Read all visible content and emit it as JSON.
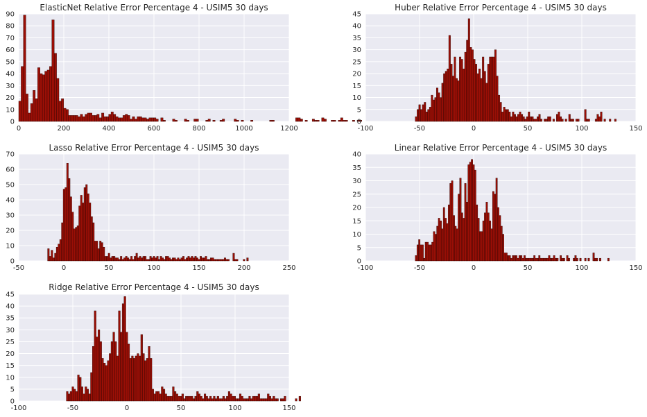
{
  "colors": {
    "bar_fill": "#9a0f06",
    "bar_edge": "#2a0300",
    "plot_bg": "#eaeaf2",
    "grid": "#ffffff"
  },
  "chart_data": [
    {
      "type": "bar",
      "title": "ElasticNet Relative Error Percentage 4 - USIM5 30 days",
      "xlim": [
        0,
        1200
      ],
      "ylim": [
        0,
        90
      ],
      "xticks": [
        0,
        200,
        400,
        600,
        800,
        1000,
        1200
      ],
      "yticks": [
        0,
        10,
        20,
        30,
        40,
        50,
        60,
        70,
        80,
        90
      ],
      "grid": true,
      "bin_start": 0,
      "bin_width": 10.5,
      "values": [
        17,
        46,
        89,
        23,
        7,
        15,
        26,
        19,
        45,
        40,
        39,
        42,
        43,
        46,
        85,
        57,
        36,
        17,
        19,
        11,
        10,
        5,
        5,
        5,
        5,
        4,
        6,
        4,
        6,
        7,
        7,
        5,
        5,
        6,
        3,
        7,
        4,
        4,
        6,
        8,
        6,
        4,
        3,
        3,
        5,
        6,
        5,
        2,
        4,
        2,
        4,
        4,
        3,
        3,
        2,
        3,
        3,
        3,
        2,
        0,
        3,
        1,
        0,
        0,
        0,
        2,
        1,
        0,
        0,
        0,
        2,
        1,
        0,
        0,
        2,
        2,
        0,
        0,
        0,
        1,
        2,
        0,
        1,
        0,
        0,
        1,
        2,
        0,
        0,
        0,
        0,
        2,
        1,
        0,
        1,
        0,
        0,
        0,
        1,
        0,
        0,
        0,
        0,
        0,
        0,
        0,
        1,
        1,
        0,
        0,
        0,
        0,
        0,
        0,
        0,
        0,
        0,
        3,
        3,
        2,
        0,
        1,
        0,
        0,
        2,
        1,
        1,
        0,
        3,
        2,
        0,
        0,
        1,
        1,
        0,
        1,
        3,
        1,
        1,
        0,
        0,
        1,
        0,
        1,
        1,
        0,
        0,
        0,
        0,
        2,
        0,
        0,
        0,
        0,
        0,
        0,
        0,
        0,
        0,
        5
      ]
    },
    {
      "type": "bar",
      "title": "Huber Relative Error Percentage 4 - USIM5 30 days",
      "xlim": [
        -100,
        150
      ],
      "ylim": [
        0,
        45
      ],
      "xticks": [
        -100,
        -50,
        0,
        50,
        100,
        150
      ],
      "yticks": [
        0,
        5,
        10,
        15,
        20,
        25,
        30,
        35,
        40,
        45
      ],
      "grid": true,
      "bin_start": -54,
      "bin_width": 1.63,
      "values": [
        2,
        5,
        7,
        5,
        7,
        8,
        4,
        5,
        6,
        11,
        9,
        10,
        14,
        12,
        10,
        16,
        20,
        21,
        22,
        36,
        24,
        19,
        27,
        18,
        17,
        27,
        26,
        22,
        29,
        34,
        43,
        31,
        30,
        26,
        24,
        20,
        22,
        18,
        27,
        21,
        16,
        24,
        27,
        27,
        27,
        30,
        19,
        11,
        8,
        4,
        6,
        5,
        5,
        4,
        2,
        4,
        3,
        2,
        3,
        4,
        3,
        2,
        1,
        2,
        4,
        2,
        2,
        1,
        1,
        2,
        3,
        1,
        0,
        1,
        1,
        2,
        2,
        0,
        1,
        0,
        3,
        4,
        2,
        1,
        0,
        1,
        0,
        3,
        1,
        1,
        0,
        1,
        1,
        0,
        0,
        0,
        5,
        1,
        1,
        0,
        0,
        0,
        1,
        3,
        2,
        4,
        0,
        1,
        0,
        0,
        1,
        0,
        0,
        1,
        0,
        0
      ]
    },
    {
      "type": "bar",
      "title": "Lasso Relative Error Percentage 4 - USIM5 30 days",
      "xlim": [
        -50,
        250
      ],
      "ylim": [
        0,
        70
      ],
      "xticks": [
        -50,
        0,
        50,
        100,
        150,
        200,
        250
      ],
      "yticks": [
        0,
        10,
        20,
        30,
        40,
        50,
        60,
        70
      ],
      "grid": true,
      "bin_start": -18,
      "bin_width": 1.92,
      "values": [
        8,
        3,
        7,
        2,
        5,
        9,
        11,
        14,
        25,
        47,
        48,
        64,
        54,
        42,
        32,
        21,
        22,
        23,
        36,
        43,
        38,
        48,
        50,
        44,
        38,
        29,
        25,
        13,
        13,
        8,
        13,
        12,
        9,
        3,
        3,
        5,
        2,
        3,
        3,
        2,
        2,
        1,
        3,
        1,
        2,
        3,
        2,
        1,
        3,
        1,
        3,
        5,
        2,
        3,
        2,
        3,
        3,
        1,
        1,
        3,
        2,
        3,
        2,
        3,
        1,
        3,
        2,
        1,
        3,
        3,
        2,
        1,
        2,
        2,
        1,
        2,
        1,
        2,
        3,
        1,
        2,
        3,
        2,
        3,
        2,
        3,
        2,
        1,
        3,
        2,
        2,
        3,
        1,
        1,
        2,
        2,
        1,
        1,
        1,
        1,
        1,
        1,
        2,
        1,
        1,
        0,
        0,
        5,
        1,
        1,
        0,
        0,
        0,
        1,
        0,
        2
      ]
    },
    {
      "type": "bar",
      "title": "Linear Relative Error Percentage 4 - USIM5 30 days",
      "xlim": [
        -100,
        150
      ],
      "ylim": [
        0,
        40
      ],
      "xticks": [
        -100,
        -50,
        0,
        50,
        100,
        150
      ],
      "yticks": [
        0,
        5,
        10,
        15,
        20,
        25,
        30,
        35,
        40
      ],
      "grid": true,
      "bin_start": -54,
      "bin_width": 1.52,
      "values": [
        2,
        6,
        8,
        6,
        6,
        1,
        7,
        7,
        6,
        6,
        7,
        11,
        10,
        13,
        16,
        15,
        12,
        20,
        16,
        14,
        21,
        29,
        30,
        17,
        13,
        12,
        25,
        31,
        18,
        16,
        29,
        22,
        36,
        37,
        38,
        36,
        34,
        21,
        16,
        11,
        11,
        15,
        18,
        22,
        18,
        15,
        12,
        26,
        25,
        31,
        20,
        17,
        13,
        10,
        3,
        3,
        2,
        2,
        1,
        2,
        2,
        2,
        1,
        2,
        2,
        1,
        2,
        1,
        1,
        1,
        1,
        1,
        2,
        1,
        1,
        2,
        1,
        1,
        1,
        1,
        1,
        2,
        1,
        1,
        2,
        1,
        1,
        0,
        2,
        1,
        1,
        0,
        2,
        1,
        0,
        0,
        1,
        2,
        1,
        0,
        1,
        0,
        0,
        1,
        0,
        1,
        0,
        0,
        3,
        1,
        1,
        0,
        1,
        0,
        0,
        0,
        0,
        1
      ]
    },
    {
      "type": "bar",
      "title": "Ridge Relative Error Percentage 4 - USIM5 30 days",
      "xlim": [
        -100,
        150
      ],
      "ylim": [
        0,
        45
      ],
      "xticks": [
        -100,
        -50,
        0,
        50,
        100,
        150
      ],
      "yticks": [
        0,
        5,
        10,
        15,
        20,
        25,
        30,
        35,
        40,
        45
      ],
      "grid": true,
      "bin_start": -56,
      "bin_width": 1.72,
      "values": [
        4,
        3,
        4,
        6,
        5,
        4,
        11,
        10,
        6,
        3,
        6,
        5,
        3,
        12,
        23,
        38,
        27,
        30,
        25,
        18,
        16,
        15,
        17,
        20,
        25,
        29,
        25,
        19,
        38,
        29,
        41,
        44,
        29,
        24,
        18,
        19,
        18,
        19,
        20,
        19,
        28,
        20,
        17,
        18,
        23,
        18,
        5,
        3,
        4,
        4,
        3,
        6,
        5,
        3,
        2,
        2,
        2,
        6,
        4,
        3,
        2,
        2,
        3,
        1,
        2,
        2,
        2,
        2,
        1,
        2,
        4,
        3,
        2,
        1,
        3,
        2,
        1,
        2,
        1,
        2,
        1,
        2,
        1,
        1,
        2,
        1,
        2,
        4,
        3,
        2,
        2,
        1,
        1,
        3,
        2,
        1,
        1,
        1,
        2,
        1,
        2,
        2,
        2,
        3,
        1,
        1,
        1,
        1,
        3,
        2,
        1,
        2,
        1,
        1,
        0,
        1,
        1,
        2,
        0,
        0,
        0,
        0,
        0,
        1,
        0,
        2
      ]
    }
  ]
}
